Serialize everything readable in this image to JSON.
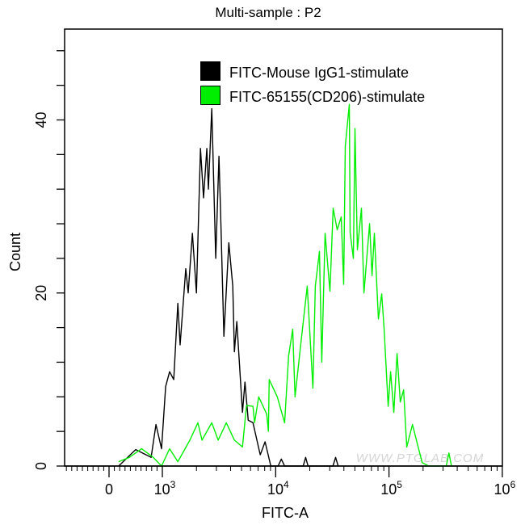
{
  "chart_data": {
    "type": "line",
    "title": "Multi-sample : P2",
    "xlabel": "FITC-A",
    "ylabel": "Count",
    "x_scale": "logicle (linear near 0, log above 10^3)",
    "xlim": [
      -830,
      1000000
    ],
    "ylim": [
      0,
      50.5
    ],
    "grid": false,
    "legend_placement": "top-center",
    "x_tick_labels": [
      {
        "value": 0,
        "base": "0",
        "exp": ""
      },
      {
        "value": 1000,
        "base": "10",
        "exp": "3"
      },
      {
        "value": 10000,
        "base": "10",
        "exp": "4"
      },
      {
        "value": 100000,
        "base": "10",
        "exp": "5"
      },
      {
        "value": 1000000,
        "base": "10",
        "exp": "6"
      }
    ],
    "y_tick_labels": [
      0,
      20,
      40
    ],
    "y_minor_tick_step": 4,
    "series": [
      {
        "name": "FITC-Mouse IgG1-stimulate",
        "color": "#000000",
        "points": [
          [
            180,
            0
          ],
          [
            500,
            1.9
          ],
          [
            790,
            1
          ],
          [
            880,
            4.8
          ],
          [
            985,
            2
          ],
          [
            1070,
            9.2
          ],
          [
            1160,
            10.9
          ],
          [
            1260,
            10
          ],
          [
            1370,
            18.8
          ],
          [
            1435,
            14
          ],
          [
            1610,
            22.8
          ],
          [
            1690,
            20
          ],
          [
            1840,
            26.9
          ],
          [
            2000,
            20
          ],
          [
            2170,
            36.7
          ],
          [
            2310,
            31
          ],
          [
            2470,
            36.7
          ],
          [
            2550,
            32
          ],
          [
            2730,
            41.3
          ],
          [
            2960,
            24
          ],
          [
            3160,
            35.8
          ],
          [
            3270,
            29
          ],
          [
            3490,
            15
          ],
          [
            3860,
            25.8
          ],
          [
            4180,
            20.8
          ],
          [
            4320,
            13.2
          ],
          [
            4540,
            16.7
          ],
          [
            5090,
            6.2
          ],
          [
            5360,
            9.7
          ],
          [
            5720,
            5.3
          ],
          [
            6310,
            5
          ],
          [
            7310,
            1.3
          ],
          [
            8070,
            2.8
          ],
          [
            9060,
            0
          ],
          [
            10500,
            0
          ],
          [
            11220,
            0.8
          ],
          [
            12000,
            0
          ],
          [
            17500,
            0
          ],
          [
            18370,
            1
          ],
          [
            19300,
            0
          ],
          [
            32000,
            0
          ],
          [
            33800,
            1
          ],
          [
            35600,
            0
          ]
        ]
      },
      {
        "name": "FITC-65155(CD206)-stimulate",
        "color": "#00ee00",
        "points": [
          [
            180,
            0.5
          ],
          [
            380,
            1
          ],
          [
            610,
            2
          ],
          [
            830,
            1
          ],
          [
            985,
            0
          ],
          [
            1160,
            2
          ],
          [
            1370,
            0.5
          ],
          [
            1750,
            3
          ],
          [
            2060,
            5
          ],
          [
            2240,
            3
          ],
          [
            2730,
            5
          ],
          [
            3110,
            3
          ],
          [
            3670,
            5
          ],
          [
            4320,
            3
          ],
          [
            5090,
            2.2
          ],
          [
            5530,
            7
          ],
          [
            6310,
            6.9
          ],
          [
            6520,
            5
          ],
          [
            7080,
            8
          ],
          [
            8340,
            6
          ],
          [
            8630,
            4
          ],
          [
            8770,
            10
          ],
          [
            10330,
            8
          ],
          [
            11990,
            5
          ],
          [
            13010,
            12.7
          ],
          [
            14130,
            15.8
          ],
          [
            14830,
            8
          ],
          [
            16640,
            14
          ],
          [
            19000,
            20.8
          ],
          [
            21320,
            9
          ],
          [
            22390,
            20.8
          ],
          [
            24320,
            24.8
          ],
          [
            25540,
            12
          ],
          [
            27290,
            26.9
          ],
          [
            30130,
            20.2
          ],
          [
            32150,
            29.8
          ],
          [
            34920,
            27.3
          ],
          [
            37920,
            28.8
          ],
          [
            39810,
            21
          ],
          [
            41120,
            37
          ],
          [
            44670,
            41.8
          ],
          [
            45400,
            27
          ],
          [
            48530,
            24
          ],
          [
            50120,
            39
          ],
          [
            52620,
            25
          ],
          [
            57140,
            29.8
          ],
          [
            60080,
            20
          ],
          [
            67450,
            28
          ],
          [
            70790,
            22
          ],
          [
            74350,
            26.9
          ],
          [
            80720,
            17
          ],
          [
            86270,
            19.9
          ],
          [
            90570,
            15.8
          ],
          [
            98400,
            6.9
          ],
          [
            103300,
            10.9
          ],
          [
            110400,
            6.2
          ],
          [
            117900,
            13
          ],
          [
            125900,
            7.4
          ],
          [
            134500,
            8.8
          ],
          [
            143500,
            2.2
          ],
          [
            161100,
            4.8
          ],
          [
            180800,
            2.2
          ],
          [
            196200,
            0.4
          ],
          [
            224000,
            0
          ],
          [
            320000,
            0
          ],
          [
            338000,
            1.5
          ],
          [
            356000,
            0
          ]
        ]
      }
    ]
  },
  "watermark": "WWW.PTGLAB.COM"
}
